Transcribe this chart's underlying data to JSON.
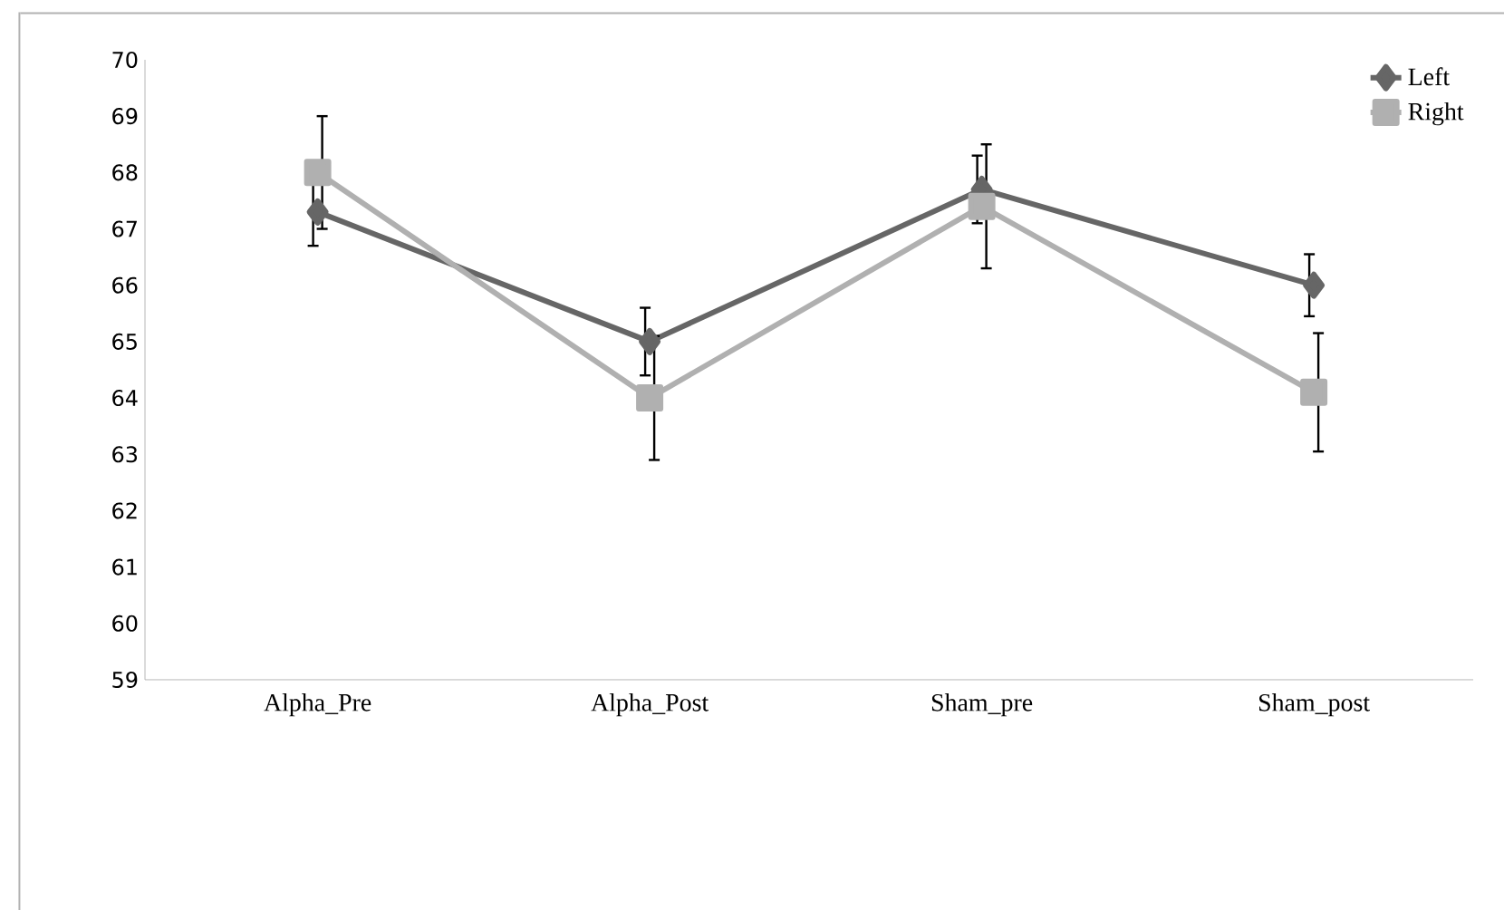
{
  "chart_data": {
    "type": "line",
    "categories": [
      "Alpha_Pre",
      "Alpha_Post",
      "Sham_pre",
      "Sham_post"
    ],
    "series": [
      {
        "name": "Left",
        "color": "#666666",
        "marker": "diamond",
        "values": [
          67.3,
          65.0,
          67.7,
          66.0
        ],
        "errors": [
          0.6,
          0.6,
          0.6,
          0.55
        ]
      },
      {
        "name": "Right",
        "color": "#b0b0b0",
        "marker": "square",
        "values": [
          68.0,
          64.0,
          67.4,
          64.1
        ],
        "errors": [
          1.0,
          1.1,
          1.1,
          1.05
        ]
      }
    ],
    "ylim": [
      59,
      70
    ],
    "yticks": [
      59,
      60,
      61,
      62,
      63,
      64,
      65,
      66,
      67,
      68,
      69,
      70
    ],
    "grid": false,
    "legend": "top right",
    "line_style": "solid"
  }
}
